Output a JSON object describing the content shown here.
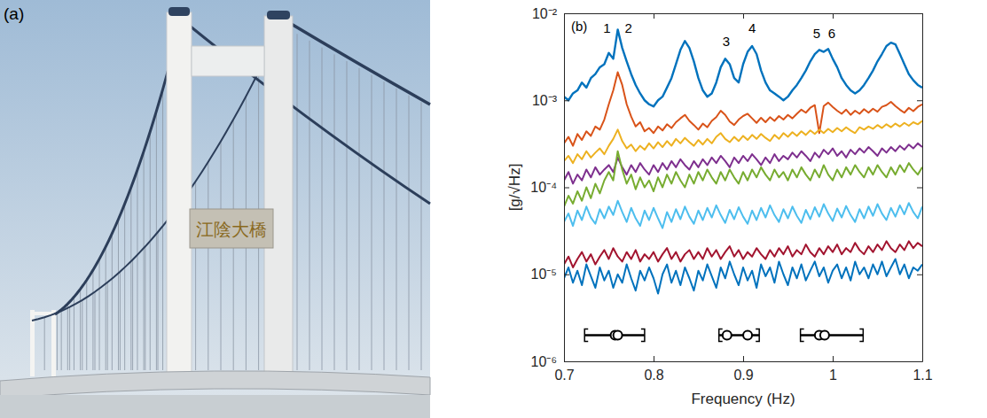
{
  "photo": {
    "label": "(a)",
    "sign_text": "江陰大橋"
  },
  "chart_data": {
    "type": "line",
    "panel_label": "(b)",
    "xlabel": "Frequency (Hz)",
    "ylabel": "[g/√Hz]",
    "log": "y",
    "xlim": [
      0.7,
      1.1
    ],
    "xticks": [
      0.7,
      0.8,
      0.9,
      1,
      1.1
    ],
    "ylim": [
      1e-06,
      0.01
    ],
    "yticks": [
      {
        "value": 1e-06,
        "label": "10⁻⁶"
      },
      {
        "value": 1e-05,
        "label": "10⁻⁵"
      },
      {
        "value": 0.0001,
        "label": "10⁻⁴"
      },
      {
        "value": 0.001,
        "label": "10⁻³"
      },
      {
        "value": 0.01,
        "label": "10⁻²"
      }
    ],
    "x": [
      0.7,
      0.705,
      0.71,
      0.715,
      0.72,
      0.725,
      0.73,
      0.735,
      0.74,
      0.745,
      0.75,
      0.755,
      0.76,
      0.765,
      0.77,
      0.775,
      0.78,
      0.785,
      0.79,
      0.795,
      0.8,
      0.805,
      0.81,
      0.815,
      0.82,
      0.825,
      0.83,
      0.835,
      0.84,
      0.845,
      0.85,
      0.855,
      0.86,
      0.865,
      0.87,
      0.875,
      0.88,
      0.885,
      0.89,
      0.895,
      0.9,
      0.905,
      0.91,
      0.915,
      0.92,
      0.925,
      0.93,
      0.935,
      0.94,
      0.945,
      0.95,
      0.955,
      0.96,
      0.965,
      0.97,
      0.975,
      0.98,
      0.985,
      0.99,
      0.995,
      1,
      1.005,
      1.01,
      1.015,
      1.02,
      1.025,
      1.03,
      1.035,
      1.04,
      1.045,
      1.05,
      1.055,
      1.06,
      1.065,
      1.07,
      1.075,
      1.08,
      1.085,
      1.09,
      1.095,
      1.1
    ],
    "series": [
      {
        "color": "#0072BD",
        "values": [
          0.0011,
          0.001,
          0.0012,
          0.0013,
          0.0016,
          0.0014,
          0.0018,
          0.002,
          0.0024,
          0.0026,
          0.0035,
          0.003,
          0.0065,
          0.004,
          0.0028,
          0.002,
          0.0015,
          0.0012,
          0.001,
          0.0009,
          0.00085,
          0.001,
          0.0011,
          0.0014,
          0.0018,
          0.0026,
          0.0038,
          0.0048,
          0.004,
          0.0028,
          0.0018,
          0.0013,
          0.0011,
          0.0012,
          0.0016,
          0.0024,
          0.003,
          0.0026,
          0.0018,
          0.0016,
          0.0026,
          0.0036,
          0.0042,
          0.0034,
          0.0022,
          0.0016,
          0.0013,
          0.0012,
          0.0011,
          0.001,
          0.0011,
          0.0013,
          0.0015,
          0.0018,
          0.0022,
          0.0028,
          0.0034,
          0.0038,
          0.0036,
          0.0039,
          0.003,
          0.0024,
          0.0018,
          0.0015,
          0.0013,
          0.0012,
          0.0013,
          0.0015,
          0.0018,
          0.0022,
          0.0028,
          0.0034,
          0.0042,
          0.0046,
          0.0044,
          0.0034,
          0.0026,
          0.002,
          0.0017,
          0.0015,
          0.0014
        ]
      },
      {
        "color": "#D95319",
        "values": [
          0.00032,
          0.00038,
          0.0003,
          0.00041,
          0.00035,
          0.00044,
          0.00039,
          0.0005,
          0.00046,
          0.0006,
          0.0009,
          0.0013,
          0.0021,
          0.0015,
          0.0009,
          0.00065,
          0.0005,
          0.00056,
          0.00044,
          0.00048,
          0.00042,
          0.0005,
          0.00045,
          0.00053,
          0.00048,
          0.00056,
          0.00062,
          0.00068,
          0.00058,
          0.00052,
          0.00046,
          0.00054,
          0.00049,
          0.00058,
          0.00064,
          0.00076,
          0.00068,
          0.00057,
          0.00052,
          0.0006,
          0.00066,
          0.0007,
          0.00062,
          0.00055,
          0.00063,
          0.00056,
          0.00064,
          0.00058,
          0.00066,
          0.0006,
          0.00068,
          0.00062,
          0.0007,
          0.00078,
          0.00072,
          0.00082,
          0.00088,
          0.00042,
          0.00086,
          0.00094,
          0.00084,
          0.00076,
          0.0007,
          0.00078,
          0.00068,
          0.00076,
          0.0007,
          0.00079,
          0.00072,
          0.0008,
          0.00074,
          0.00084,
          0.00088,
          0.00096,
          0.00086,
          0.00078,
          0.00072,
          0.00082,
          0.00075,
          0.00084,
          0.0009
        ]
      },
      {
        "color": "#EDB120",
        "values": [
          0.0002,
          0.00023,
          0.00019,
          0.00024,
          0.00021,
          0.00026,
          0.00022,
          0.00025,
          0.00028,
          0.00024,
          0.0003,
          0.00036,
          0.00046,
          0.00034,
          0.00028,
          0.00031,
          0.00026,
          0.0003,
          0.00027,
          0.00032,
          0.00028,
          0.00033,
          0.00029,
          0.00034,
          0.0003,
          0.00036,
          0.00032,
          0.00037,
          0.00033,
          0.0003,
          0.00035,
          0.00031,
          0.00036,
          0.00032,
          0.00038,
          0.00042,
          0.00036,
          0.00033,
          0.00038,
          0.00034,
          0.00039,
          0.00035,
          0.0004,
          0.00036,
          0.00041,
          0.00037,
          0.00034,
          0.0004,
          0.00036,
          0.00042,
          0.00038,
          0.00043,
          0.00039,
          0.00044,
          0.0004,
          0.00045,
          0.00041,
          0.00046,
          0.00042,
          0.00047,
          0.00043,
          0.00048,
          0.00044,
          0.00049,
          0.00045,
          0.00042,
          0.00049,
          0.00046,
          0.0005,
          0.00047,
          0.00052,
          0.00048,
          0.00053,
          0.00049,
          0.00054,
          0.0005,
          0.00055,
          0.00051,
          0.00056,
          0.00053,
          0.00058
        ]
      },
      {
        "color": "#7E2F8E",
        "values": [
          0.00012,
          0.00015,
          0.00011,
          0.00014,
          0.00012,
          0.00016,
          0.00013,
          0.00017,
          0.00014,
          0.00016,
          0.00018,
          0.00015,
          0.00022,
          0.00017,
          0.00014,
          0.00018,
          0.00015,
          0.00019,
          0.00016,
          0.00014,
          0.00018,
          0.00015,
          0.00019,
          0.00016,
          0.0002,
          0.00017,
          0.00021,
          0.00018,
          0.00016,
          0.0002,
          0.00017,
          0.00021,
          0.00018,
          0.00022,
          0.00019,
          0.00023,
          0.0002,
          0.00017,
          0.00022,
          0.00019,
          0.00023,
          0.0002,
          0.00024,
          0.00021,
          0.00018,
          0.00022,
          0.00019,
          0.00024,
          0.0002,
          0.00023,
          0.00021,
          0.00025,
          0.00022,
          0.00026,
          0.00023,
          0.0002,
          0.00025,
          0.00022,
          0.00027,
          0.00024,
          0.00028,
          0.00023,
          0.00026,
          0.00022,
          0.00027,
          0.00024,
          0.00028,
          0.00025,
          0.00029,
          0.00026,
          0.00023,
          0.00028,
          0.00025,
          0.00029,
          0.00026,
          0.0003,
          0.00027,
          0.00031,
          0.00028,
          0.00032,
          0.00029
        ]
      },
      {
        "color": "#77AC30",
        "values": [
          6e-05,
          8e-05,
          6.5e-05,
          9e-05,
          7e-05,
          0.0001,
          7.5e-05,
          0.00011,
          8.5e-05,
          0.00012,
          0.00015,
          0.00012,
          0.00026,
          0.00016,
          0.00011,
          0.00014,
          9.5e-05,
          0.00013,
          0.0001,
          0.00012,
          9e-05,
          0.00013,
          0.0001,
          0.00014,
          0.00011,
          0.00015,
          0.00012,
          0.0001,
          0.00014,
          0.00011,
          0.00015,
          0.00012,
          0.00016,
          0.00013,
          0.00011,
          0.00015,
          0.00012,
          0.00016,
          0.00013,
          0.00011,
          0.00015,
          0.00012,
          0.00016,
          0.00013,
          0.00017,
          0.00014,
          0.00012,
          0.00016,
          0.00013,
          0.00015,
          0.00012,
          0.00016,
          0.00013,
          0.00017,
          0.00014,
          0.00012,
          0.00016,
          0.00013,
          0.00018,
          0.00014,
          0.00012,
          0.00016,
          0.00013,
          0.00017,
          0.00014,
          0.00018,
          0.00015,
          0.00013,
          0.00017,
          0.00014,
          0.00018,
          0.00015,
          0.00013,
          0.00017,
          0.00014,
          0.00018,
          0.00015,
          0.00019,
          0.00016,
          0.00014,
          0.00017
        ]
      },
      {
        "color": "#4DBEEE",
        "values": [
          4e-05,
          5e-05,
          3.6e-05,
          5.4e-05,
          4.2e-05,
          6e-05,
          4.5e-05,
          3.8e-05,
          5.6e-05,
          4.4e-05,
          6e-05,
          4.8e-05,
          7e-05,
          5.2e-05,
          4e-05,
          5.8e-05,
          4.4e-05,
          3.6e-05,
          5.4e-05,
          4.2e-05,
          5.8e-05,
          4.4e-05,
          3.4e-05,
          5.2e-05,
          4e-05,
          5.6e-05,
          4.3e-05,
          6e-05,
          4.6e-05,
          3.8e-05,
          5.4e-05,
          4.2e-05,
          5.8e-05,
          4.5e-05,
          6.2e-05,
          4.8e-05,
          3.9e-05,
          5.5e-05,
          4.3e-05,
          5.9e-05,
          4.6e-05,
          3.8e-05,
          5.4e-05,
          4.2e-05,
          5.8e-05,
          4.5e-05,
          6.2e-05,
          4.8e-05,
          4e-05,
          5.6e-05,
          4.4e-05,
          6e-05,
          4.7e-05,
          3.9e-05,
          5.5e-05,
          4.3e-05,
          5.9e-05,
          4.6e-05,
          6.4e-05,
          5e-05,
          4.1e-05,
          5.7e-05,
          4.5e-05,
          6.1e-05,
          4.8e-05,
          4e-05,
          5.6e-05,
          4.4e-05,
          6e-05,
          4.7e-05,
          6.4e-05,
          5e-05,
          4.2e-05,
          5.8e-05,
          4.6e-05,
          6.2e-05,
          4.9e-05,
          6.6e-05,
          5.2e-05,
          4.4e-05,
          6e-05
        ]
      },
      {
        "color": "#A2142F",
        "values": [
          1.3e-05,
          1.6e-05,
          1.2e-05,
          1.5e-05,
          1.8e-05,
          1.4e-05,
          1.7e-05,
          1.3e-05,
          1.6e-05,
          1.9e-05,
          1.5e-05,
          2e-05,
          1.6e-05,
          1.4e-05,
          1.8e-05,
          1.5e-05,
          1.9e-05,
          1.4e-05,
          1.7e-05,
          1.5e-05,
          1.8e-05,
          1.4e-05,
          1.7e-05,
          2e-05,
          1.5e-05,
          1.8e-05,
          1.4e-05,
          1.7e-05,
          1.9e-05,
          1.5e-05,
          1.8e-05,
          1.5e-05,
          2e-05,
          1.6e-05,
          1.9e-05,
          1.5e-05,
          1.8e-05,
          2.1e-05,
          1.6e-05,
          1.9e-05,
          1.5e-05,
          1.8e-05,
          1.6e-05,
          2e-05,
          1.7e-05,
          1.5e-05,
          1.9e-05,
          1.6e-05,
          2e-05,
          1.7e-05,
          2.1e-05,
          1.6e-05,
          1.9e-05,
          1.7e-05,
          2.2e-05,
          1.8e-05,
          1.6e-05,
          2e-05,
          1.7e-05,
          2.1e-05,
          1.8e-05,
          2.2e-05,
          1.7e-05,
          2e-05,
          1.8e-05,
          2.3e-05,
          1.9e-05,
          1.7e-05,
          2.1e-05,
          1.8e-05,
          2.2e-05,
          1.9e-05,
          2.4e-05,
          2e-05,
          1.8e-05,
          2.2e-05,
          1.9e-05,
          2.4e-05,
          2e-05,
          2.3e-05,
          2.1e-05
        ]
      },
      {
        "color": "#0072BD",
        "values": [
          9e-06,
          1.2e-05,
          8e-06,
          1.1e-05,
          7.5e-06,
          1.3e-05,
          9.5e-06,
          7e-06,
          1.2e-05,
          8.5e-06,
          1.1e-05,
          7e-06,
          1e-05,
          8e-06,
          1.3e-05,
          9e-06,
          6.5e-06,
          1.1e-05,
          8.5e-06,
          1.2e-05,
          9e-06,
          6e-06,
          1e-05,
          1.3e-05,
          8e-06,
          1.1e-05,
          7.5e-06,
          1.2e-05,
          9e-06,
          6.5e-06,
          1.1e-05,
          8.5e-06,
          1.3e-05,
          9.5e-06,
          7e-06,
          1.2e-05,
          9e-06,
          1.4e-05,
          1e-05,
          7.5e-06,
          1.2e-05,
          8.5e-06,
          1.1e-05,
          7e-06,
          1.3e-05,
          9.5e-06,
          1.2e-05,
          8e-06,
          1.4e-05,
          1e-05,
          7.5e-06,
          1.2e-05,
          9e-06,
          1.3e-05,
          8.5e-06,
          1.1e-05,
          1.4e-05,
          9.5e-06,
          1.2e-05,
          8e-06,
          1.1e-05,
          1.3e-05,
          9e-06,
          1.2e-05,
          8.5e-06,
          1.4e-05,
          1e-05,
          1.2e-05,
          9e-06,
          1.3e-05,
          1e-05,
          1.4e-05,
          9.5e-06,
          1.2e-05,
          1.5e-05,
          1e-05,
          1.3e-05,
          9e-06,
          1.2e-05,
          1.1e-05,
          1.3e-05
        ]
      }
    ],
    "annotations": [
      {
        "text": "1",
        "x": 0.748,
        "y": 0.006
      },
      {
        "text": "2",
        "x": 0.772,
        "y": 0.006
      },
      {
        "text": "3",
        "x": 0.881,
        "y": 0.0042
      },
      {
        "text": "4",
        "x": 0.91,
        "y": 0.006
      },
      {
        "text": "5",
        "x": 0.982,
        "y": 0.0052
      },
      {
        "text": "6",
        "x": 0.999,
        "y": 0.0052
      }
    ],
    "mode_estimate_y": 2e-06,
    "mode_estimates": [
      {
        "values": [
          0.757,
          0.76
        ],
        "interval": [
          0.723,
          0.79
        ]
      },
      {
        "values": [
          0.882,
          0.905
        ],
        "interval": [
          0.873,
          0.918
        ]
      },
      {
        "values": [
          0.985,
          0.991
        ],
        "interval": [
          0.964,
          1.034
        ]
      }
    ]
  }
}
